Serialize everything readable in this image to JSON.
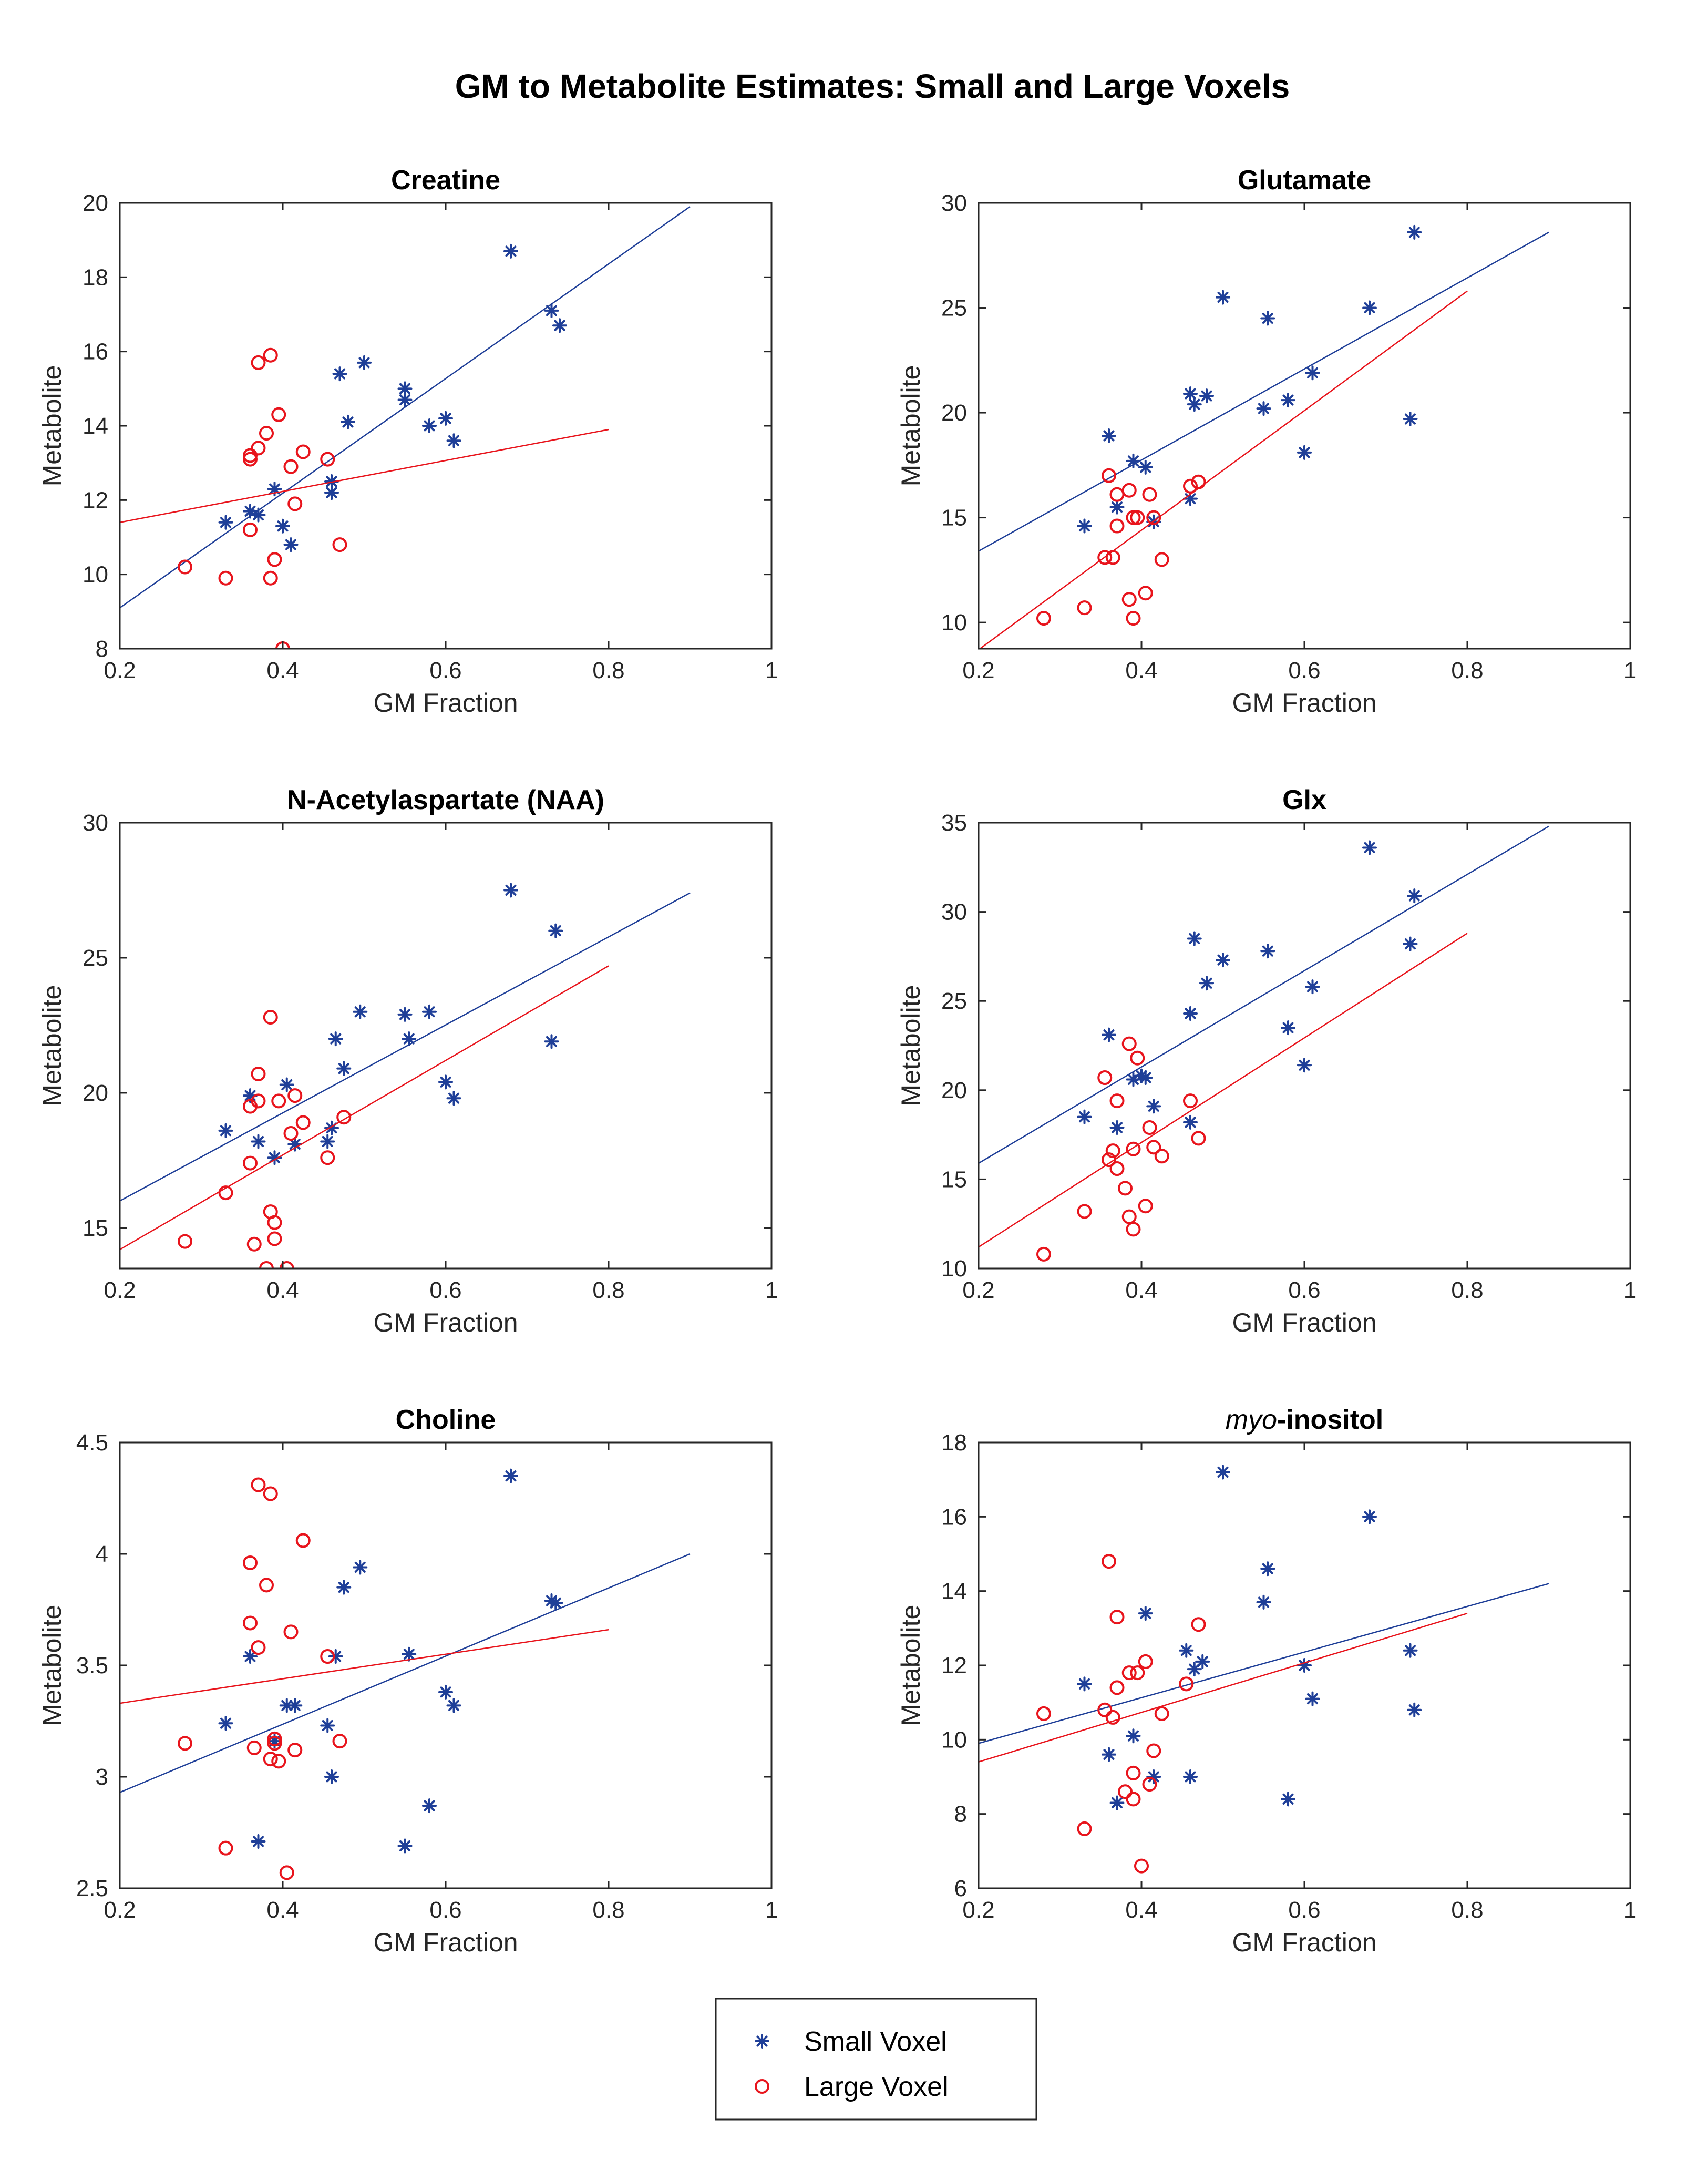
{
  "chart_data": {
    "figure_title": "GM to Metabolite Estimates: Small and Large Voxels",
    "legend": {
      "placement": "bottom-center",
      "entries": [
        {
          "name": "Small Voxel",
          "marker": "asterisk",
          "color": "#1f3f98"
        },
        {
          "name": "Large Voxel",
          "marker": "circle",
          "color": "#e8141c"
        }
      ]
    },
    "subplots": [
      {
        "type": "scatter",
        "title": "Creatine",
        "xlabel": "GM Fraction",
        "ylabel": "Metabolite",
        "xlim": [
          0.2,
          1
        ],
        "ylim": [
          8,
          20
        ],
        "xticks": [
          0.2,
          0.4,
          0.6,
          0.8,
          1
        ],
        "xtick_labels": [
          "0.2",
          "0.4",
          "0.6",
          "0.8",
          "1"
        ],
        "yticks": [
          8,
          10,
          12,
          14,
          16,
          18,
          20
        ],
        "ytick_labels": [
          "8",
          "10",
          "12",
          "14",
          "16",
          "18",
          "20"
        ],
        "series": [
          {
            "name": "Small Voxel",
            "x": [
              0.33,
              0.36,
              0.37,
              0.39,
              0.4,
              0.41,
              0.46,
              0.46,
              0.47,
              0.48,
              0.5,
              0.55,
              0.55,
              0.58,
              0.6,
              0.61,
              0.68,
              0.73,
              0.74
            ],
            "y": [
              11.4,
              11.7,
              11.6,
              12.3,
              11.3,
              10.8,
              12.5,
              12.2,
              15.4,
              14.1,
              15.7,
              14.7,
              15.0,
              14.0,
              14.2,
              13.6,
              18.7,
              17.1,
              16.7
            ],
            "fit": {
              "x": [
                0.2,
                0.9
              ],
              "y": [
                9.1,
                19.9
              ]
            }
          },
          {
            "name": "Large Voxel",
            "x": [
              0.28,
              0.33,
              0.36,
              0.36,
              0.36,
              0.37,
              0.37,
              0.38,
              0.385,
              0.385,
              0.39,
              0.39,
              0.395,
              0.4,
              0.41,
              0.415,
              0.425,
              0.455,
              0.47
            ],
            "y": [
              10.2,
              9.9,
              13.1,
              13.2,
              11.2,
              15.7,
              13.4,
              13.8,
              15.9,
              9.9,
              10.4,
              10.4,
              14.3,
              8.0,
              12.9,
              11.9,
              13.3,
              13.1,
              10.8
            ],
            "fit": {
              "x": [
                0.2,
                0.8
              ],
              "y": [
                11.4,
                13.9
              ]
            }
          }
        ]
      },
      {
        "type": "scatter",
        "title": "Glutamate",
        "xlabel": "GM Fraction",
        "ylabel": "Metabolite",
        "xlim": [
          0.2,
          1
        ],
        "ylim": [
          8.75,
          30
        ],
        "xticks": [
          0.2,
          0.4,
          0.6,
          0.8,
          1
        ],
        "xtick_labels": [
          "0.2",
          "0.4",
          "0.6",
          "0.8",
          "1"
        ],
        "yticks": [
          10,
          15,
          20,
          25,
          30
        ],
        "ytick_labels": [
          "10",
          "15",
          "20",
          "25",
          "30"
        ],
        "series": [
          {
            "name": "Small Voxel",
            "x": [
              0.33,
              0.36,
              0.37,
              0.39,
              0.405,
              0.415,
              0.46,
              0.46,
              0.465,
              0.48,
              0.5,
              0.55,
              0.555,
              0.58,
              0.6,
              0.61,
              0.68,
              0.73,
              0.735
            ],
            "y": [
              14.6,
              18.9,
              15.5,
              17.7,
              17.4,
              14.8,
              15.9,
              20.9,
              20.4,
              20.8,
              25.5,
              20.2,
              24.5,
              20.6,
              18.1,
              21.9,
              25.0,
              19.7,
              28.6
            ],
            "fit": {
              "x": [
                0.2,
                0.9
              ],
              "y": [
                13.4,
                28.6
              ]
            }
          },
          {
            "name": "Large Voxel",
            "x": [
              0.28,
              0.33,
              0.355,
              0.36,
              0.365,
              0.37,
              0.37,
              0.385,
              0.385,
              0.39,
              0.39,
              0.395,
              0.405,
              0.41,
              0.415,
              0.425,
              0.46,
              0.47
            ],
            "y": [
              10.2,
              10.7,
              13.1,
              17.0,
              13.1,
              14.6,
              16.1,
              16.3,
              11.1,
              10.2,
              15.0,
              15.0,
              11.4,
              16.1,
              15.0,
              13.0,
              16.5,
              16.7
            ],
            "fit": {
              "x": [
                0.2,
                0.8
              ],
              "y": [
                8.7,
                25.8
              ]
            }
          }
        ]
      },
      {
        "type": "scatter",
        "title": "N-Acetylaspartate (NAA)",
        "xlabel": "GM Fraction",
        "ylabel": "Metabolite",
        "xlim": [
          0.2,
          1
        ],
        "ylim": [
          13.5,
          30
        ],
        "xticks": [
          0.2,
          0.4,
          0.6,
          0.8,
          1
        ],
        "xtick_labels": [
          "0.2",
          "0.4",
          "0.6",
          "0.8",
          "1"
        ],
        "yticks": [
          15,
          20,
          25,
          30
        ],
        "ytick_labels": [
          "15",
          "20",
          "25",
          "30"
        ],
        "series": [
          {
            "name": "Small Voxel",
            "x": [
              0.33,
              0.36,
              0.37,
              0.39,
              0.405,
              0.415,
              0.455,
              0.46,
              0.465,
              0.475,
              0.495,
              0.55,
              0.555,
              0.58,
              0.6,
              0.61,
              0.68,
              0.73,
              0.735
            ],
            "y": [
              18.6,
              19.9,
              18.2,
              17.6,
              20.3,
              18.1,
              18.2,
              18.7,
              22.0,
              20.9,
              23.0,
              22.9,
              22.0,
              23.0,
              20.4,
              19.8,
              27.5,
              21.9,
              26.0
            ],
            "fit": {
              "x": [
                0.2,
                0.9
              ],
              "y": [
                16.0,
                27.4
              ]
            }
          },
          {
            "name": "Large Voxel",
            "x": [
              0.28,
              0.33,
              0.36,
              0.36,
              0.365,
              0.37,
              0.37,
              0.38,
              0.385,
              0.385,
              0.39,
              0.39,
              0.395,
              0.405,
              0.41,
              0.415,
              0.425,
              0.455,
              0.475
            ],
            "y": [
              14.5,
              16.3,
              19.5,
              17.4,
              14.4,
              20.7,
              19.7,
              13.5,
              22.8,
              15.6,
              15.2,
              14.6,
              19.7,
              13.5,
              18.5,
              19.9,
              18.9,
              17.6,
              19.1
            ],
            "fit": {
              "x": [
                0.2,
                0.8
              ],
              "y": [
                14.2,
                24.7
              ]
            }
          }
        ]
      },
      {
        "type": "scatter",
        "title": "Glx",
        "xlabel": "GM Fraction",
        "ylabel": "Metabolite",
        "xlim": [
          0.2,
          1
        ],
        "ylim": [
          10,
          35
        ],
        "xticks": [
          0.2,
          0.4,
          0.6,
          0.8,
          1
        ],
        "xtick_labels": [
          "0.2",
          "0.4",
          "0.6",
          "0.8",
          "1"
        ],
        "yticks": [
          10,
          15,
          20,
          25,
          30,
          35
        ],
        "ytick_labels": [
          "10",
          "15",
          "20",
          "25",
          "30",
          "35"
        ],
        "series": [
          {
            "name": "Small Voxel",
            "x": [
              0.33,
              0.36,
              0.37,
              0.39,
              0.4,
              0.405,
              0.415,
              0.46,
              0.46,
              0.465,
              0.48,
              0.5,
              0.555,
              0.58,
              0.6,
              0.61,
              0.68,
              0.73,
              0.735
            ],
            "y": [
              18.5,
              23.1,
              17.9,
              20.6,
              20.8,
              20.7,
              19.1,
              18.2,
              24.3,
              28.5,
              26.0,
              27.3,
              27.8,
              23.5,
              21.4,
              25.8,
              33.6,
              28.2,
              30.9
            ],
            "fit": {
              "x": [
                0.2,
                0.9
              ],
              "y": [
                15.9,
                34.8
              ]
            }
          },
          {
            "name": "Large Voxel",
            "x": [
              0.28,
              0.33,
              0.355,
              0.36,
              0.365,
              0.37,
              0.37,
              0.38,
              0.385,
              0.385,
              0.39,
              0.39,
              0.395,
              0.405,
              0.41,
              0.415,
              0.425,
              0.46,
              0.47
            ],
            "y": [
              10.8,
              13.2,
              20.7,
              16.1,
              16.6,
              15.6,
              19.4,
              14.5,
              22.6,
              12.9,
              12.2,
              16.7,
              21.8,
              13.5,
              17.9,
              16.8,
              16.3,
              19.4,
              17.3
            ],
            "fit": {
              "x": [
                0.2,
                0.8
              ],
              "y": [
                11.2,
                28.8
              ]
            }
          }
        ]
      },
      {
        "type": "scatter",
        "title": "Choline",
        "xlabel": "GM Fraction",
        "ylabel": "Metabolite",
        "xlim": [
          0.2,
          1
        ],
        "ylim": [
          2.5,
          4.5
        ],
        "xticks": [
          0.2,
          0.4,
          0.6,
          0.8,
          1
        ],
        "xtick_labels": [
          "0.2",
          "0.4",
          "0.6",
          "0.8",
          "1"
        ],
        "yticks": [
          2.5,
          3,
          3.5,
          4,
          4.5
        ],
        "ytick_labels": [
          "2.5",
          "3",
          "3.5",
          "4",
          "4.5"
        ],
        "series": [
          {
            "name": "Small Voxel",
            "x": [
              0.33,
              0.36,
              0.37,
              0.39,
              0.405,
              0.415,
              0.455,
              0.46,
              0.465,
              0.475,
              0.495,
              0.55,
              0.555,
              0.58,
              0.6,
              0.61,
              0.68,
              0.73,
              0.735
            ],
            "y": [
              3.24,
              3.54,
              2.71,
              3.16,
              3.32,
              3.32,
              3.23,
              3.0,
              3.54,
              3.85,
              3.94,
              2.69,
              3.55,
              2.87,
              3.38,
              3.32,
              4.35,
              3.79,
              3.78
            ],
            "fit": {
              "x": [
                0.2,
                0.9
              ],
              "y": [
                2.93,
                4.0
              ]
            }
          },
          {
            "name": "Large Voxel",
            "x": [
              0.28,
              0.33,
              0.36,
              0.36,
              0.365,
              0.37,
              0.37,
              0.38,
              0.385,
              0.385,
              0.39,
              0.39,
              0.395,
              0.405,
              0.41,
              0.415,
              0.425,
              0.455,
              0.47
            ],
            "y": [
              3.15,
              2.68,
              3.96,
              3.69,
              3.13,
              4.31,
              3.58,
              3.86,
              4.27,
              3.08,
              3.15,
              3.17,
              3.07,
              2.57,
              3.65,
              3.12,
              4.06,
              3.54,
              3.16
            ],
            "fit": {
              "x": [
                0.2,
                0.8
              ],
              "y": [
                3.33,
                3.66
              ]
            }
          }
        ]
      },
      {
        "type": "scatter",
        "title_italic": "myo",
        "title_rest": "-inositol",
        "xlabel": "GM Fraction",
        "ylabel": "Metabolite",
        "xlim": [
          0.2,
          1
        ],
        "ylim": [
          6,
          18
        ],
        "xticks": [
          0.2,
          0.4,
          0.6,
          0.8,
          1
        ],
        "xtick_labels": [
          "0.2",
          "0.4",
          "0.6",
          "0.8",
          "1"
        ],
        "yticks": [
          6,
          8,
          10,
          12,
          14,
          16,
          18
        ],
        "ytick_labels": [
          "6",
          "8",
          "10",
          "12",
          "14",
          "16",
          "18"
        ],
        "series": [
          {
            "name": "Small Voxel",
            "x": [
              0.33,
              0.36,
              0.37,
              0.39,
              0.405,
              0.415,
              0.455,
              0.46,
              0.465,
              0.475,
              0.5,
              0.55,
              0.555,
              0.58,
              0.6,
              0.61,
              0.68,
              0.73,
              0.735
            ],
            "y": [
              11.5,
              9.6,
              8.3,
              10.1,
              13.4,
              9.0,
              12.4,
              9.0,
              11.9,
              12.1,
              17.2,
              13.7,
              14.6,
              8.4,
              12.0,
              11.1,
              16.0,
              12.4,
              10.8
            ],
            "fit": {
              "x": [
                0.2,
                0.9
              ],
              "y": [
                9.9,
                14.2
              ]
            }
          },
          {
            "name": "Large Voxel",
            "x": [
              0.28,
              0.33,
              0.355,
              0.36,
              0.365,
              0.37,
              0.37,
              0.38,
              0.385,
              0.39,
              0.39,
              0.395,
              0.4,
              0.405,
              0.41,
              0.415,
              0.425,
              0.455,
              0.47
            ],
            "y": [
              10.7,
              7.6,
              10.8,
              14.8,
              10.6,
              13.3,
              11.4,
              8.6,
              11.8,
              9.1,
              8.4,
              11.8,
              6.6,
              12.1,
              8.8,
              9.7,
              10.7,
              11.5,
              13.1
            ],
            "fit": {
              "x": [
                0.2,
                0.8
              ],
              "y": [
                9.4,
                13.4
              ]
            }
          }
        ]
      }
    ]
  }
}
